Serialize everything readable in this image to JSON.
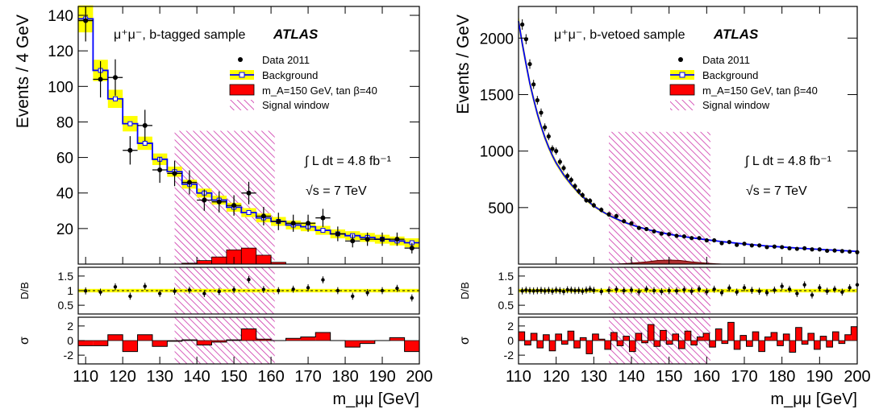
{
  "colors": {
    "background_band": "#ffff00",
    "background_line": "#0000ff",
    "signal_fill": "#ff0000",
    "signal_window": "#cc33aa",
    "data_marker": "#000000"
  },
  "chart_data": [
    {
      "id": "left",
      "type": "line",
      "sample_label": "μ⁺μ⁻, b-tagged sample",
      "experiment": "ATLAS",
      "ylabel": "Events / 4 GeV",
      "xlabel": "m_μμ [GeV]",
      "xlim": [
        108,
        200
      ],
      "ylim": [
        0,
        145
      ],
      "yticks": [
        20,
        40,
        60,
        80,
        100,
        120,
        140
      ],
      "xticks": [
        110,
        120,
        130,
        140,
        150,
        160,
        170,
        180,
        190,
        200
      ],
      "legend": [
        "Data 2011",
        "Background",
        "m_A=150 GeV, tan β=40",
        "Signal window"
      ],
      "luminosity_label": "∫ L dt = 4.8 fb⁻¹",
      "energy_label": "√s = 7 TeV",
      "signal_window": [
        134,
        161,
        75
      ],
      "bin_edges": [
        108,
        112,
        116,
        120,
        124,
        128,
        132,
        136,
        140,
        144,
        148,
        152,
        156,
        160,
        164,
        168,
        172,
        176,
        180,
        184,
        188,
        192,
        196,
        200
      ],
      "background": [
        138,
        109,
        93,
        79,
        68,
        59,
        52,
        45,
        40,
        36,
        32,
        29,
        26,
        24,
        22,
        21,
        19,
        17,
        16,
        15,
        14,
        13,
        12
      ],
      "signal": [
        0,
        0,
        0,
        0,
        0,
        0,
        0,
        0.5,
        2,
        4,
        8,
        9,
        5,
        1,
        0,
        0,
        0,
        0,
        0,
        0,
        0,
        0,
        0
      ],
      "data": {
        "x": [
          110,
          114,
          118,
          122,
          126,
          130,
          134,
          138,
          142,
          146,
          150,
          154,
          158,
          162,
          166,
          170,
          174,
          178,
          182,
          186,
          190,
          194,
          198
        ],
        "y": [
          137,
          104,
          105,
          64,
          78,
          53,
          51,
          46,
          36,
          35,
          33,
          40,
          27,
          24,
          23,
          23,
          26,
          17,
          13,
          14,
          14,
          14,
          9
        ]
      },
      "ratio": {
        "ylabel": "D/B",
        "ylim": [
          0.2,
          1.8
        ],
        "yticks": [
          0.5,
          1,
          1.5
        ],
        "values": [
          0.99,
          0.95,
          1.13,
          0.81,
          1.15,
          0.9,
          0.98,
          1.02,
          0.9,
          0.97,
          1.03,
          1.38,
          1.04,
          1.0,
          1.05,
          1.1,
          1.37,
          1.0,
          0.81,
          0.93,
          1.0,
          1.08,
          0.75
        ]
      },
      "pull": {
        "ylabel": "σ",
        "ylim": [
          -3.2,
          3.2
        ],
        "yticks": [
          -2,
          0,
          2
        ],
        "values": [
          -0.7,
          -0.7,
          0.8,
          -1.5,
          0.8,
          -0.8,
          -0.1,
          0.1,
          -0.6,
          -0.2,
          0.1,
          1.6,
          0.2,
          0,
          0.3,
          0.5,
          1.1,
          0,
          -0.9,
          -0.4,
          0,
          0.4,
          -1.5
        ]
      }
    },
    {
      "id": "right",
      "type": "line",
      "sample_label": "μ⁺μ⁻, b-vetoed sample",
      "experiment": "ATLAS",
      "ylabel": "Events / GeV",
      "xlabel": "m_μμ [GeV]",
      "xlim": [
        110,
        200
      ],
      "ylim": [
        0,
        2280
      ],
      "yticks": [
        500,
        1000,
        1500,
        2000
      ],
      "xticks": [
        110,
        120,
        130,
        140,
        150,
        160,
        170,
        180,
        190,
        200
      ],
      "legend": [
        "Data 2011",
        "Background",
        "m_A=150 GeV, tan β=40",
        "Signal window"
      ],
      "luminosity_label": "∫ L dt = 4.8 fb⁻¹",
      "energy_label": "√s = 7 TeV",
      "signal_window": [
        134,
        161,
        1170
      ],
      "background_curve": {
        "x": [
          110,
          111,
          112,
          113,
          114,
          115,
          116,
          117,
          118,
          119,
          120,
          122,
          124,
          126,
          128,
          130,
          132,
          134,
          136,
          138,
          140,
          142,
          145,
          148,
          150,
          152,
          155,
          158,
          160,
          163,
          166,
          170,
          175,
          180,
          185,
          190,
          195,
          200
        ],
        "y": [
          2150,
          1950,
          1770,
          1600,
          1460,
          1330,
          1220,
          1120,
          1035,
          960,
          895,
          790,
          705,
          630,
          568,
          515,
          470,
          432,
          400,
          372,
          348,
          327,
          300,
          278,
          265,
          253,
          238,
          224,
          215,
          203,
          192,
          178,
          163,
          151,
          140,
          130,
          121,
          112
        ]
      },
      "signal_bump": {
        "x": [
          136,
          140,
          144,
          147,
          150,
          153,
          156,
          160,
          164
        ],
        "y": [
          0,
          8,
          20,
          32,
          36,
          32,
          20,
          8,
          0
        ]
      },
      "data": {
        "x": [
          111,
          112,
          113,
          114,
          115,
          116,
          117,
          118,
          119,
          120,
          121,
          122,
          123,
          124,
          125,
          126,
          127,
          128,
          129,
          130,
          132,
          134,
          136,
          138,
          140,
          142,
          144,
          146,
          148,
          150,
          152,
          154,
          156,
          158,
          160,
          162,
          164,
          166,
          168,
          170,
          172,
          174,
          176,
          178,
          180,
          182,
          184,
          186,
          188,
          190,
          192,
          194,
          196,
          198,
          200
        ],
        "y": [
          2120,
          1990,
          1770,
          1590,
          1450,
          1340,
          1210,
          1130,
          1020,
          1000,
          905,
          850,
          780,
          745,
          690,
          645,
          610,
          565,
          560,
          520,
          480,
          440,
          425,
          380,
          360,
          320,
          310,
          290,
          270,
          265,
          250,
          245,
          230,
          230,
          210,
          210,
          185,
          195,
          170,
          180,
          165,
          165,
          150,
          155,
          150,
          140,
          135,
          140,
          130,
          130,
          118,
          120,
          115,
          110,
          105
        ]
      },
      "ratio": {
        "ylabel": "D/B",
        "ylim": [
          0.2,
          1.8
        ],
        "yticks": [
          0.5,
          1,
          1.5
        ],
        "values": [
          0.99,
          1.02,
          1.0,
          0.99,
          1.0,
          1.01,
          0.99,
          1.01,
          0.98,
          1.02,
          1.0,
          0.97,
          1.03,
          1.02,
          1.0,
          1.01,
          0.98,
          1.02,
          1.05,
          1.01,
          0.97,
          1.01,
          1.04,
          1.0,
          1.02,
          0.96,
          1.05,
          1.0,
          0.97,
          1.0,
          0.99,
          1.03,
          0.98,
          1.06,
          0.96,
          1.05,
          0.93,
          1.09,
          0.95,
          1.1,
          1.01,
          0.98,
          0.93,
          1.02,
          1.15,
          1.05,
          0.9,
          1.2,
          0.85,
          1.1,
          0.98,
          1.05,
          0.95,
          1.1,
          1.2
        ]
      },
      "pull": {
        "ylabel": "σ",
        "ylim": [
          -3.2,
          3.2
        ],
        "yticks": [
          -2,
          0,
          2
        ],
        "values": [
          1.2,
          -0.6,
          1.0,
          -1.0,
          0.8,
          -1.4,
          0.9,
          -0.5,
          1.3,
          -1.0,
          0.4,
          -1.8,
          0.9,
          0.2,
          -1.2,
          1.1,
          -0.7,
          0.6,
          -1.5,
          1.0,
          -0.3,
          2.2,
          -0.8,
          1.4,
          -0.5,
          0.9,
          -1.1,
          1.3,
          -0.6,
          0.5,
          1.0,
          -0.9,
          1.6,
          -0.4,
          2.5,
          -1.2,
          0.7,
          -0.8,
          1.2,
          -1.5,
          0.5,
          1.1,
          -0.7,
          0.9,
          -1.6,
          1.8,
          -0.5,
          1.0,
          -1.2,
          0.6,
          -0.9,
          1.2,
          -0.4,
          0.8,
          1.9
        ]
      }
    }
  ]
}
